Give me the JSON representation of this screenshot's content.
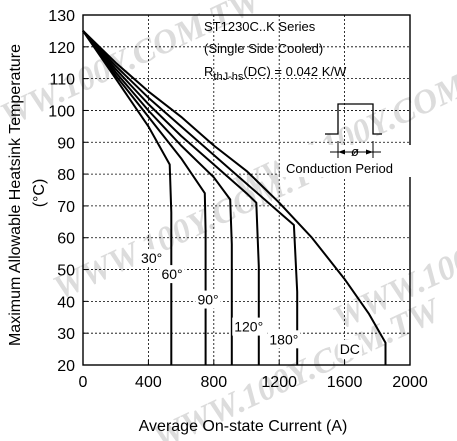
{
  "chart_data": {
    "type": "line",
    "title": "ST1230C..K Series",
    "subtitle": "(Single Side Cooled)",
    "rthjhs_label": {
      "main": "R",
      "sub": "thJ-hs",
      "rest": "(DC) = 0.042 K/W"
    },
    "xlabel": "Average On-state Current (A)",
    "ylabel_line1": "Maximum Allowable Heatsink Temperature",
    "ylabel_line2": "(°C)",
    "xlim": [
      0,
      2000
    ],
    "ylim": [
      20,
      130
    ],
    "x_ticks": [
      0,
      400,
      800,
      1200,
      1600,
      2000
    ],
    "y_ticks": [
      20,
      30,
      40,
      50,
      60,
      70,
      80,
      90,
      100,
      110,
      120,
      130
    ],
    "grid": true,
    "inset_label": "Conduction Period",
    "inset_symbol": "ø",
    "watermark": "WWW.100Y.COM.TW",
    "series": [
      {
        "name": "30°",
        "points": [
          [
            0,
            125
          ],
          [
            200,
            110
          ],
          [
            400,
            95
          ],
          [
            530,
            83
          ],
          [
            540,
            68
          ],
          [
            540,
            20
          ]
        ]
      },
      {
        "name": "60°",
        "points": [
          [
            0,
            125
          ],
          [
            200,
            111
          ],
          [
            400,
            98
          ],
          [
            600,
            85
          ],
          [
            745,
            74
          ],
          [
            750,
            62
          ],
          [
            750,
            20
          ]
        ]
      },
      {
        "name": "90°",
        "points": [
          [
            0,
            125
          ],
          [
            200,
            112
          ],
          [
            400,
            100
          ],
          [
            600,
            89
          ],
          [
            800,
            79
          ],
          [
            900,
            72
          ],
          [
            910,
            58
          ],
          [
            910,
            20
          ]
        ]
      },
      {
        "name": "120°",
        "points": [
          [
            0,
            125
          ],
          [
            200,
            113
          ],
          [
            400,
            102
          ],
          [
            600,
            92
          ],
          [
            800,
            83
          ],
          [
            1000,
            74
          ],
          [
            1060,
            71
          ],
          [
            1075,
            51
          ],
          [
            1075,
            20
          ]
        ]
      },
      {
        "name": "180°",
        "points": [
          [
            0,
            125
          ],
          [
            200,
            114
          ],
          [
            400,
            104
          ],
          [
            600,
            95
          ],
          [
            800,
            86
          ],
          [
            1000,
            77
          ],
          [
            1200,
            68
          ],
          [
            1290,
            64
          ],
          [
            1310,
            43
          ],
          [
            1310,
            20
          ]
        ]
      },
      {
        "name": "DC",
        "points": [
          [
            0,
            125
          ],
          [
            200,
            115
          ],
          [
            400,
            106
          ],
          [
            600,
            98
          ],
          [
            800,
            89
          ],
          [
            1000,
            81
          ],
          [
            1200,
            71
          ],
          [
            1400,
            60
          ],
          [
            1600,
            47
          ],
          [
            1750,
            36
          ],
          [
            1850,
            27
          ],
          [
            1850,
            20
          ]
        ]
      }
    ],
    "curve_labels": [
      {
        "series": "30°",
        "x": 355,
        "y": 52
      },
      {
        "series": "60°",
        "x": 480,
        "y": 47
      },
      {
        "series": "90°",
        "x": 700,
        "y": 39
      },
      {
        "series": "120°",
        "x": 925,
        "y": 30.5
      },
      {
        "series": "180°",
        "x": 1140,
        "y": 26.5
      },
      {
        "series": "DC",
        "x": 1570,
        "y": 23.5
      }
    ]
  }
}
